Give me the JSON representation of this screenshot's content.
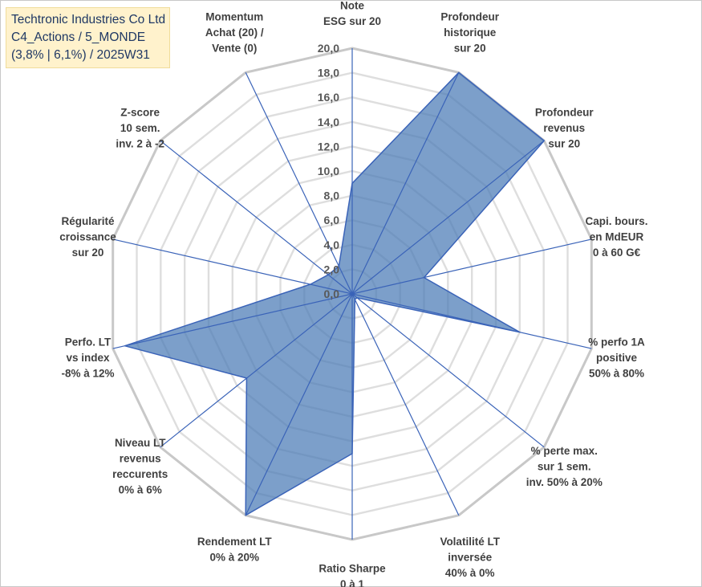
{
  "header": {
    "line1": "Techtronic Industries Co Ltd",
    "line2": "C4_Actions / 5_MONDE",
    "line3": "(3,8% | 6,1%) / 2025W31"
  },
  "colors": {
    "fill": "#4a7ab5",
    "stroke": "#3a63b8",
    "grid_ring": "#c8c8c8",
    "grid_ring_inner": "#dedede"
  },
  "chart_data": {
    "type": "radar",
    "title": "",
    "rmin": 0,
    "rmax": 20,
    "tick_step": 2,
    "tick_labels": [
      "0,0",
      "2,0",
      "4,0",
      "6,0",
      "8,0",
      "10,0",
      "12,0",
      "14,0",
      "16,0",
      "18,0",
      "20,0"
    ],
    "categories": [
      [
        "Note",
        "ESG sur 20"
      ],
      [
        "Profondeur",
        "historique",
        "sur 20"
      ],
      [
        "Profondeur",
        "revenus",
        "sur 20"
      ],
      [
        "Capi. bours.",
        "en MdEUR",
        "0 à 60 G€"
      ],
      [
        "% perfo 1A",
        "positive",
        "50% à 80%"
      ],
      [
        "% perte max.",
        "sur 1 sem.",
        "inv. 50% à 20%"
      ],
      [
        "Volatilité LT",
        "inversée",
        "40% à 0%"
      ],
      [
        "Ratio Sharpe",
        "0 à 1"
      ],
      [
        "Rendement LT",
        "0% à 20%"
      ],
      [
        "Niveau LT",
        "revenus",
        "reccurents",
        "0% à 6%"
      ],
      [
        "Perfo. LT",
        "vs index",
        "-8% à 12%"
      ],
      [
        "Régularité",
        "croissance",
        "sur 20"
      ],
      [
        "Z-score",
        "10 sem.",
        "inv. 2 à -2"
      ],
      [
        "Momentum",
        "Achat (20) /",
        "Vente (0)"
      ]
    ],
    "legend": "none",
    "grid": true,
    "series": [
      {
        "values": [
          9.0,
          20.0,
          20.0,
          6.0,
          14.0,
          0.5,
          0.5,
          13.0,
          20.0,
          11.0,
          19.0,
          3.5,
          2.5,
          2.5
        ]
      }
    ]
  }
}
